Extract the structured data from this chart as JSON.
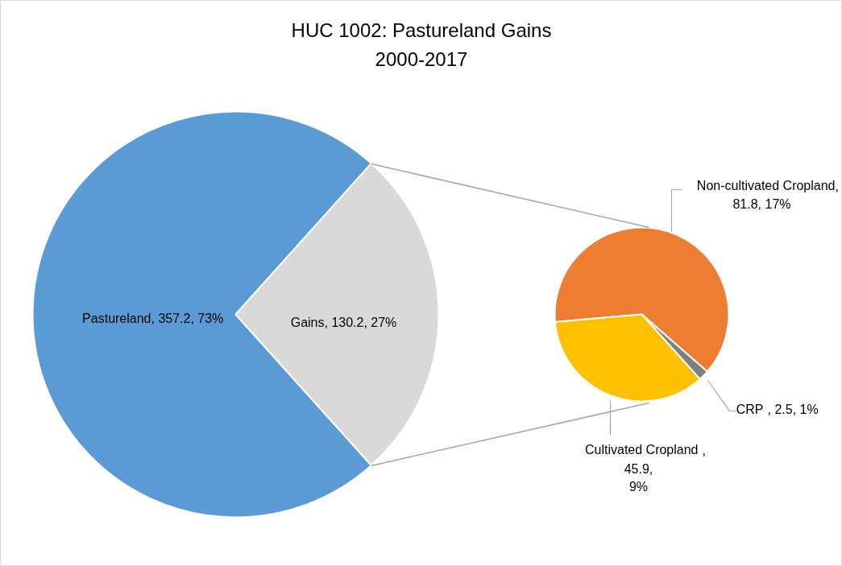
{
  "chart_data": [
    {
      "type": "pie",
      "title": "HUC 1002: Pastureland Gains\n2000-2017",
      "categories": [
        "Pastureland",
        "Gains"
      ],
      "values": [
        357.2,
        130.2
      ],
      "colors": [
        "#5b9bd5",
        "#d9d9d9"
      ],
      "value_labels": [
        ", 357.2, 73%",
        ", 130.2, 27%"
      ]
    },
    {
      "type": "pie",
      "categories": [
        "Non-cultivated Cropland",
        "CRP",
        "Cultivated Cropland"
      ],
      "values": [
        81.8,
        2.5,
        45.9
      ],
      "colors": [
        "#ed7d31",
        "#7f7f7f",
        "#ffc000"
      ],
      "value_labels": [
        ",\n81.8, 17%",
        ", 2.5, 1%",
        ",\n45.9,\n9%"
      ]
    }
  ]
}
